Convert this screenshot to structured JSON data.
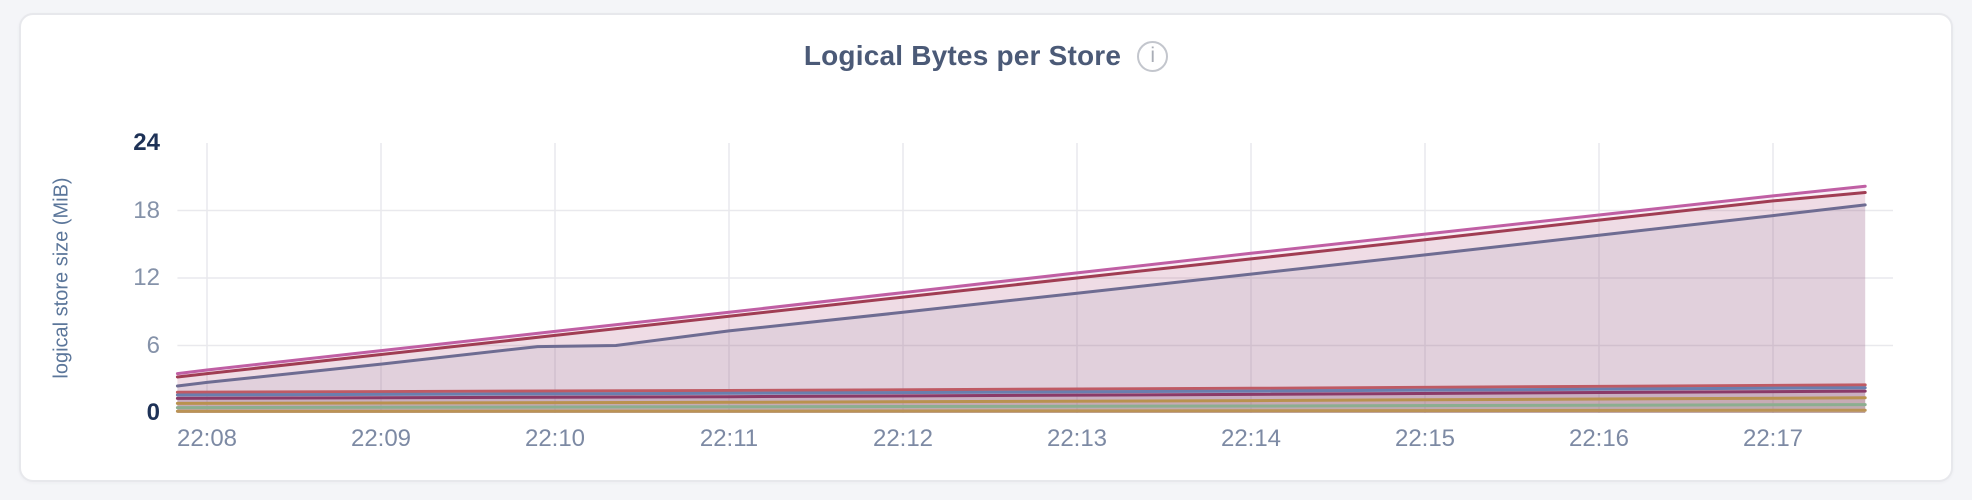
{
  "header": {
    "title": "Logical Bytes per Store",
    "info_icon_glyph": "i"
  },
  "chart_data": {
    "type": "area",
    "title": "Logical Bytes per Store",
    "xlabel": "",
    "ylabel": "logical store size (MiB)",
    "ylim": [
      0,
      24
    ],
    "yticks": [
      0,
      6,
      12,
      18,
      24
    ],
    "xticks": [
      "22:08",
      "22:09",
      "22:10",
      "22:11",
      "22:12",
      "22:13",
      "22:14",
      "22:15",
      "22:16",
      "22:17"
    ],
    "x_domain_minutes_after_2200": [
      7.83,
      17.53
    ],
    "grid": true,
    "legend_position": "none",
    "series": [
      {
        "color": "#c05fa4",
        "points": [
          [
            7.83,
            3.5
          ],
          [
            8,
            3.82
          ],
          [
            9,
            5.55
          ],
          [
            10,
            7.25
          ],
          [
            11,
            8.95
          ],
          [
            12,
            10.7
          ],
          [
            13,
            12.45
          ],
          [
            14,
            14.2
          ],
          [
            15,
            15.9
          ],
          [
            16,
            17.6
          ],
          [
            17,
            19.3
          ],
          [
            17.53,
            20.15
          ]
        ]
      },
      {
        "color": "#a03d53",
        "points": [
          [
            7.83,
            3.2
          ],
          [
            8,
            3.5
          ],
          [
            9,
            5.2
          ],
          [
            10,
            6.9
          ],
          [
            11,
            8.6
          ],
          [
            12,
            10.3
          ],
          [
            13,
            12.0
          ],
          [
            14,
            13.7
          ],
          [
            15,
            15.4
          ],
          [
            16,
            17.15
          ],
          [
            17,
            18.85
          ],
          [
            17.53,
            19.6
          ]
        ]
      },
      {
        "color": "#6e6c92",
        "points": [
          [
            7.83,
            2.4
          ],
          [
            8,
            2.72
          ],
          [
            9,
            4.35
          ],
          [
            9.9,
            5.9
          ],
          [
            10.35,
            6.0
          ],
          [
            11,
            7.3
          ],
          [
            12,
            8.95
          ],
          [
            13,
            10.65
          ],
          [
            14,
            12.35
          ],
          [
            15,
            14.05
          ],
          [
            16,
            15.8
          ],
          [
            17,
            17.55
          ],
          [
            17.53,
            18.5
          ]
        ]
      },
      {
        "color": "#bf5a64",
        "points": [
          [
            7.83,
            1.85
          ],
          [
            11,
            2.0
          ],
          [
            14,
            2.2
          ],
          [
            17.53,
            2.5
          ]
        ]
      },
      {
        "color": "#6a7eae",
        "points": [
          [
            7.83,
            1.6
          ],
          [
            11,
            1.75
          ],
          [
            14,
            1.95
          ],
          [
            17.53,
            2.25
          ]
        ]
      },
      {
        "color": "#8a3a68",
        "points": [
          [
            7.83,
            1.3
          ],
          [
            11,
            1.45
          ],
          [
            14,
            1.65
          ],
          [
            17.53,
            1.95
          ]
        ]
      },
      {
        "color": "#b9924f",
        "points": [
          [
            7.83,
            0.85
          ],
          [
            11,
            0.95
          ],
          [
            14,
            1.1
          ],
          [
            17.53,
            1.35
          ]
        ]
      },
      {
        "color": "#8cae90",
        "points": [
          [
            7.83,
            0.48
          ],
          [
            11,
            0.55
          ],
          [
            14,
            0.62
          ],
          [
            17.53,
            0.75
          ]
        ]
      },
      {
        "color": "#bb9355",
        "points": [
          [
            7.83,
            0.15
          ],
          [
            11,
            0.17
          ],
          [
            14,
            0.2
          ],
          [
            17.53,
            0.25
          ]
        ]
      }
    ]
  }
}
